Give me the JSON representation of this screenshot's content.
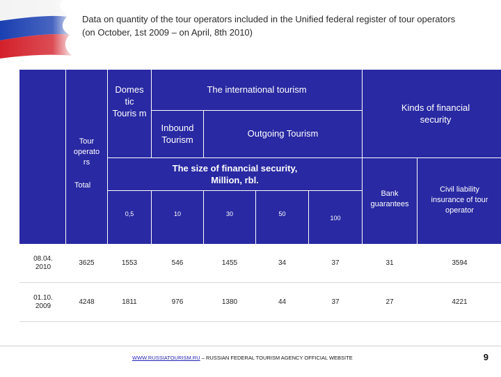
{
  "title": {
    "line1": "Data on quantity of the tour operators included in the Unified federal register of tour operators",
    "line2": "(on October, 1st 2009 – on April, 8th 2010)"
  },
  "header": {
    "domestic_tourism": "Domes tic Touris m",
    "tour_operators": "Tour operato rs",
    "total": "Total",
    "international_tourism": "The international tourism",
    "inbound_tourism": "Inbound Tourism",
    "outgoing_tourism": "Outgoing Tourism",
    "kinds_of_security": "Kinds  of financial security",
    "size_of_security": "The size of financial security, Million, rbl.",
    "bank_guarantees": "Bank guarantees",
    "civil_liability": "Civil liability insurance of tour operator",
    "amounts": [
      "0,5",
      "10",
      "30",
      "50",
      "100"
    ]
  },
  "rows": [
    {
      "date": "08.04. 2010",
      "values": [
        "3625",
        "1553",
        "546",
        "1455",
        "34",
        "37",
        "31",
        "3594"
      ]
    },
    {
      "date": "01.10. 2009",
      "values": [
        "4248",
        "1811",
        "976",
        "1380",
        "44",
        "37",
        "27",
        "4221"
      ]
    }
  ],
  "footer": {
    "link": "WWW.RUSSIATOURISM.RU",
    "text": " – RUSSIAN FEDERAL TOURISM AGENCY OFFICIAL WEBSITE",
    "page_number": "9"
  },
  "colors": {
    "header_blue": "#2929a3",
    "flag_white": "#ffffff",
    "flag_blue": "#1a3fb0",
    "flag_red": "#d3202a"
  }
}
